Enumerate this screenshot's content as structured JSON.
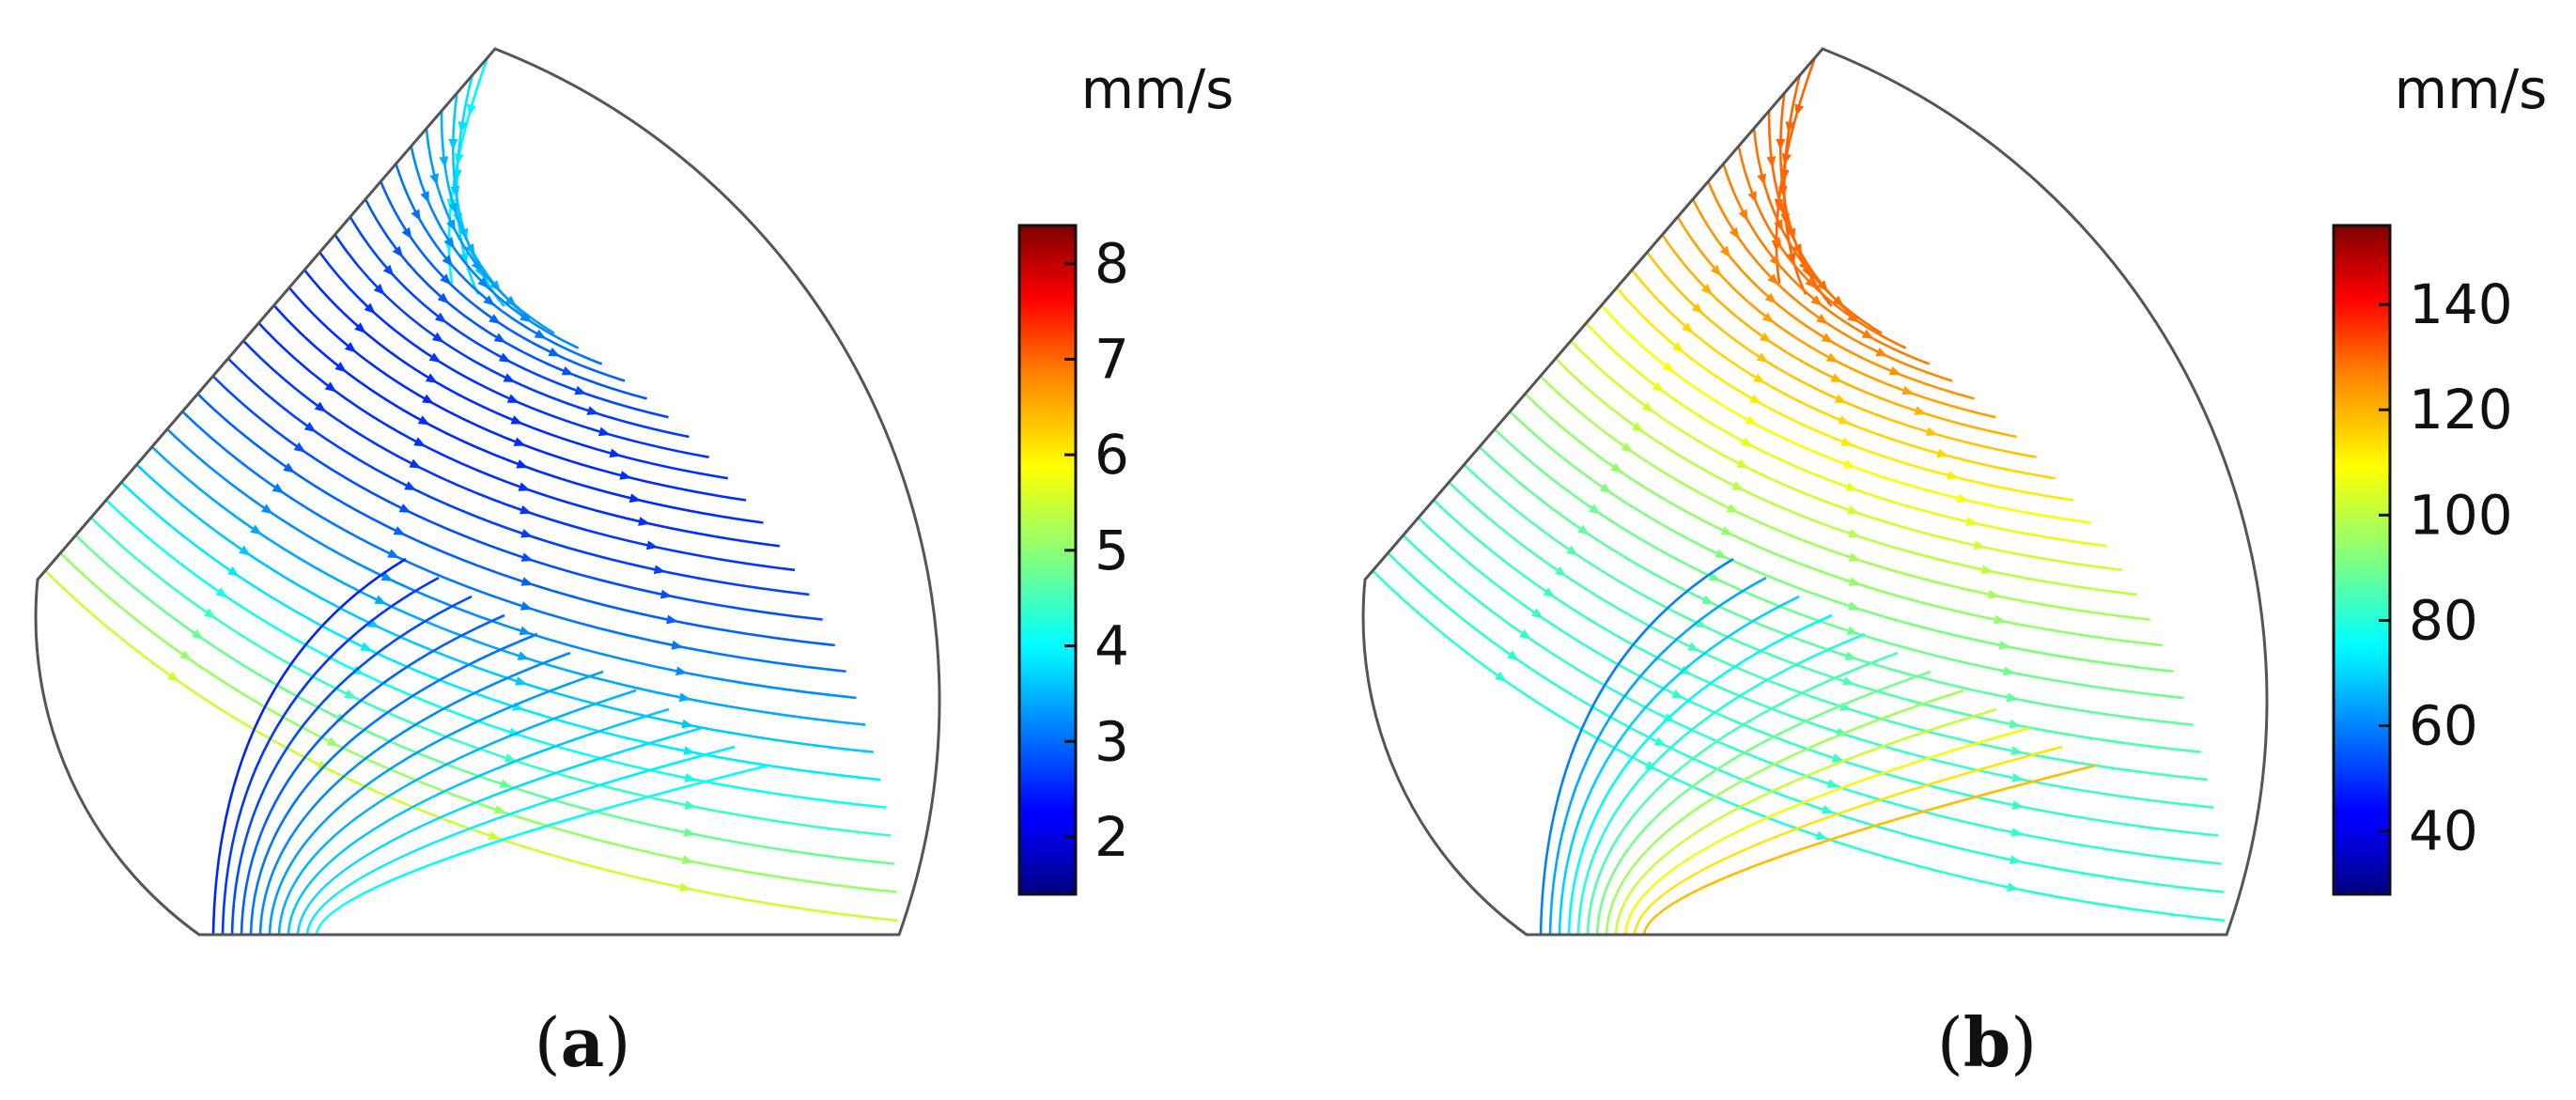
{
  "panels": [
    {
      "id": "a",
      "caption_open": "(",
      "caption_letter": "a",
      "caption_close": ")",
      "colorbar": {
        "unit": "mm/s",
        "ticks": [
          "8",
          "7",
          "6",
          "5",
          "4",
          "3",
          "2"
        ],
        "tick_values": [
          8,
          7,
          6,
          5,
          4,
          3,
          2
        ],
        "min": 1.4,
        "max": 8.4
      },
      "streamline_speed_range": [
        1.8,
        6.0
      ]
    },
    {
      "id": "b",
      "caption_open": "(",
      "caption_letter": "b",
      "caption_close": ")",
      "colorbar": {
        "unit": "mm/s",
        "ticks": [
          "140",
          "120",
          "100",
          "80",
          "60",
          "40"
        ],
        "tick_values": [
          140,
          120,
          100,
          80,
          60,
          40
        ],
        "min": 28,
        "max": 155
      },
      "streamline_speed_range": [
        40,
        140
      ]
    }
  ],
  "colormap": "jet"
}
